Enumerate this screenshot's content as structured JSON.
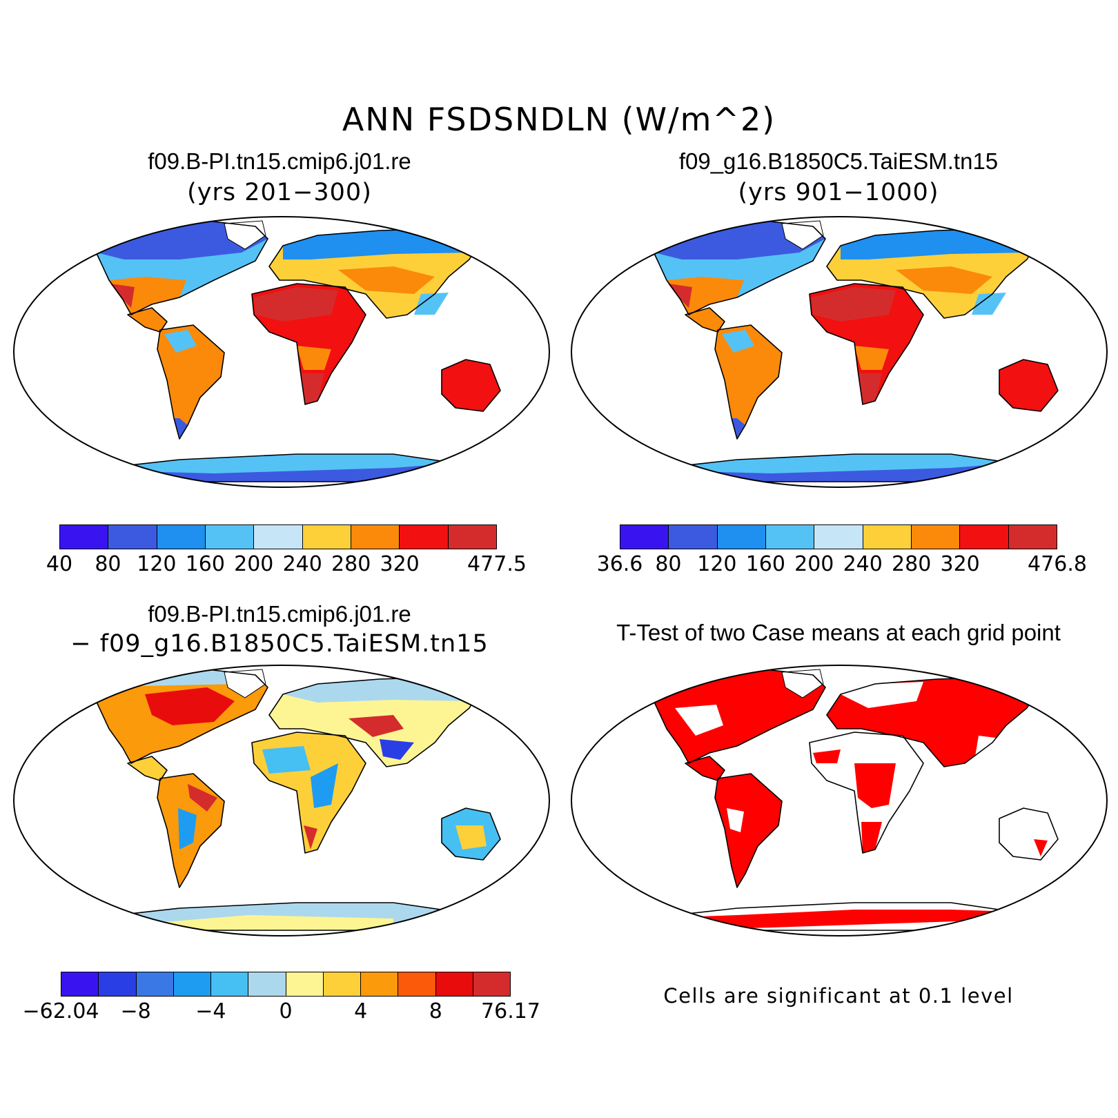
{
  "figure": {
    "title": "ANN FSDSNDLN (W/m^2)"
  },
  "panels": [
    {
      "title": "f09.B-PI.tn15.cmip6.j01.re",
      "subtitle": "(yrs 201−300)",
      "colorbar": {
        "colors": [
          "#3a14f0",
          "#3c5ae0",
          "#1f8ff0",
          "#55c2f5",
          "#c6e6f7",
          "#fdd03a",
          "#fb8a0a",
          "#f21010",
          "#d42c2c"
        ],
        "labels": [
          "40",
          "80",
          "120",
          "160",
          "200",
          "240",
          "280",
          "320",
          "477.5"
        ]
      }
    },
    {
      "title": "f09_g16.B1850C5.TaiESM.tn15",
      "subtitle": "(yrs 901−1000)",
      "colorbar": {
        "colors": [
          "#3a14f0",
          "#3c5ae0",
          "#1f8ff0",
          "#55c2f5",
          "#c6e6f7",
          "#fdd03a",
          "#fb8a0a",
          "#f21010",
          "#d42c2c"
        ],
        "labels": [
          "36.6",
          "80",
          "120",
          "160",
          "200",
          "240",
          "280",
          "320",
          "476.8"
        ]
      }
    },
    {
      "title": "f09.B-PI.tn15.cmip6.j01.re",
      "subtitle": "− f09_g16.B1850C5.TaiESM.tn15",
      "colorbar": {
        "colors": [
          "#3a14f0",
          "#2a3ee6",
          "#3a78e6",
          "#1e9cf2",
          "#46bff2",
          "#acd8ee",
          "#fdf593",
          "#fdd03a",
          "#fb9a0a",
          "#fb5a0a",
          "#e80c0c",
          "#d42c2c"
        ],
        "labels": [
          "−62.04",
          "−8",
          "−4",
          "0",
          "4",
          "8",
          "76.17"
        ]
      }
    },
    {
      "title": "T-Test of two Case means at each grid point",
      "note": "Cells are significant at 0.1 level",
      "fill_color": "#ff0000"
    }
  ]
}
